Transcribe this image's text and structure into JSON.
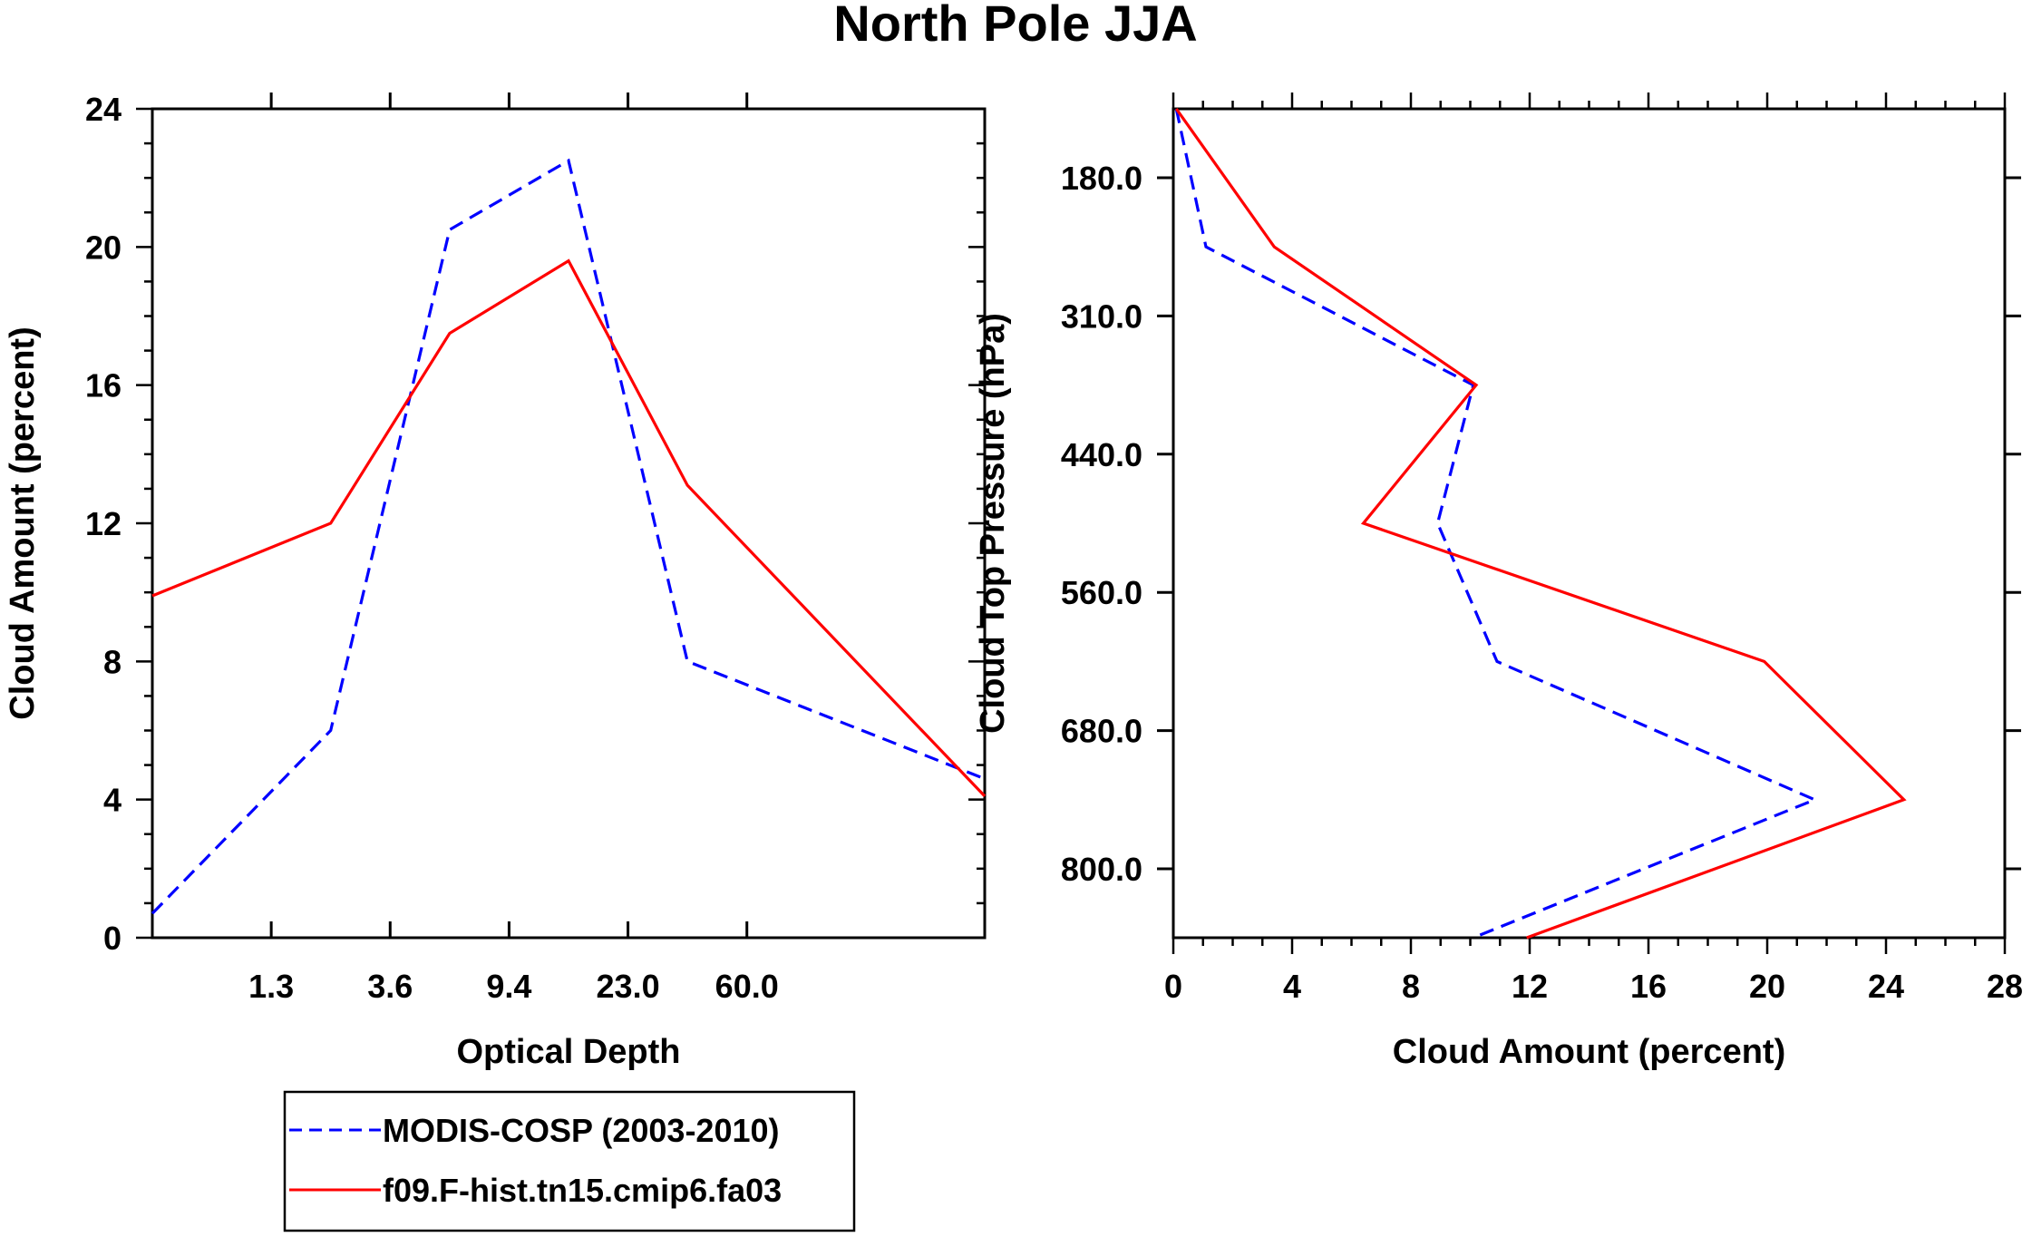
{
  "title": "North Pole JJA",
  "chart_data": [
    {
      "type": "line",
      "panel": "left",
      "xlabel": "Optical Depth",
      "ylabel": "Cloud Amount (percent)",
      "x_tick_labels": [
        "1.3",
        "3.6",
        "9.4",
        "23.0",
        "60.0"
      ],
      "x_bins": 7,
      "ylim": [
        0,
        24
      ],
      "y_ticks": [
        0,
        4,
        8,
        12,
        16,
        20,
        24
      ],
      "series": [
        {
          "name": "MODIS-COSP (2003-2010)",
          "color": "#0000ff",
          "dash": "dashed",
          "values": [
            0.7,
            6.0,
            20.5,
            22.5,
            8.0,
            4.6
          ]
        },
        {
          "name": "f09.F-hist.tn15.cmip6.fa03",
          "color": "#ff0000",
          "dash": "solid",
          "values": [
            9.9,
            12.0,
            17.5,
            19.6,
            13.1,
            4.1
          ]
        }
      ]
    },
    {
      "type": "line",
      "panel": "right",
      "xlabel": "Cloud Amount (percent)",
      "ylabel": "Cloud Top Pressure (hPa)",
      "xlim": [
        0,
        28
      ],
      "x_ticks": [
        0,
        4,
        8,
        12,
        16,
        20,
        24,
        28
      ],
      "y_tick_labels": [
        "180.0",
        "310.0",
        "440.0",
        "560.0",
        "680.0",
        "800.0"
      ],
      "y_bins": 6,
      "series": [
        {
          "name": "MODIS-COSP (2003-2010)",
          "color": "#0000ff",
          "dash": "dashed",
          "values": [
            0.1,
            1.1,
            10.1,
            8.9,
            10.9,
            21.6,
            10.1
          ]
        },
        {
          "name": "f09.F-hist.tn15.cmip6.fa03",
          "color": "#ff0000",
          "dash": "solid",
          "values": [
            0.1,
            3.4,
            10.2,
            6.4,
            19.9,
            24.6,
            11.9
          ]
        }
      ]
    }
  ],
  "legend": {
    "items": [
      {
        "label": "MODIS-COSP (2003-2010)",
        "color": "#0000ff",
        "dash": "dashed"
      },
      {
        "label": "f09.F-hist.tn15.cmip6.fa03",
        "color": "#ff0000",
        "dash": "solid"
      }
    ]
  }
}
